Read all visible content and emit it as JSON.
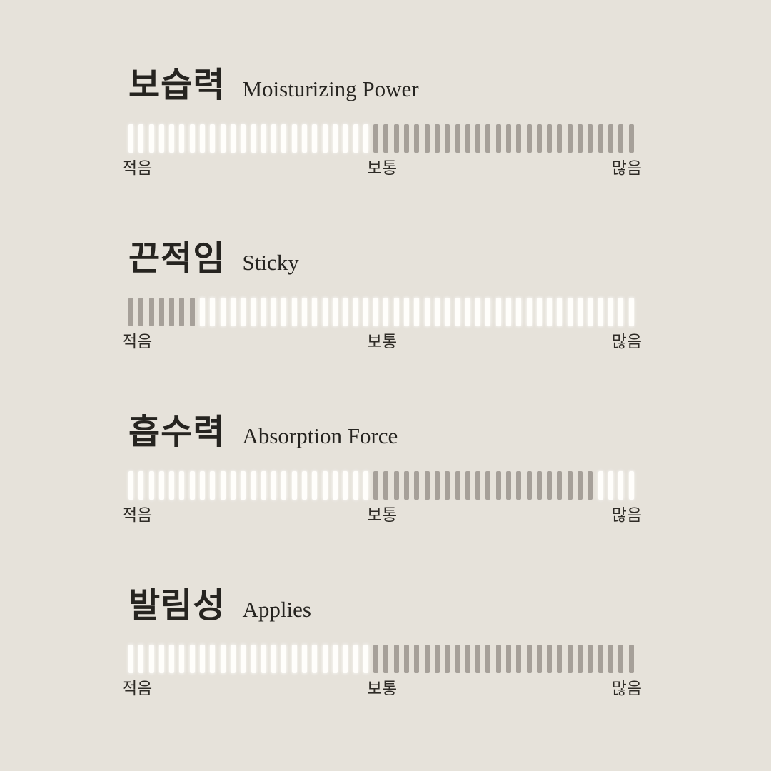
{
  "palette": {
    "background": "#e6e2da",
    "tick_white": "#fffefb",
    "tick_gray": "#a6a099",
    "text_dark": "#262420",
    "text_label": "#2e2b26"
  },
  "scale_labels": {
    "low": "적음",
    "mid": "보통",
    "high": "많음"
  },
  "sections": [
    {
      "title_kr": "보습력",
      "title_en": "Moisturizing Power",
      "segments": [
        {
          "color": "white",
          "count": 24
        },
        {
          "color": "gray",
          "count": 26
        }
      ]
    },
    {
      "title_kr": "끈적임",
      "title_en": "Sticky",
      "segments": [
        {
          "color": "gray",
          "count": 7
        },
        {
          "color": "white",
          "count": 43
        }
      ]
    },
    {
      "title_kr": "흡수력",
      "title_en": "Absorption Force",
      "segments": [
        {
          "color": "white",
          "count": 24
        },
        {
          "color": "gray",
          "count": 22
        },
        {
          "color": "white",
          "count": 4
        }
      ]
    },
    {
      "title_kr": "발림성",
      "title_en": "Applies",
      "segments": [
        {
          "color": "white",
          "count": 24
        },
        {
          "color": "gray",
          "count": 26
        }
      ]
    }
  ],
  "chart_data": {
    "type": "bar",
    "ticks_per_bar": 50,
    "axis_tick_labels": [
      "적음",
      "보통",
      "많음"
    ],
    "bars": [
      {
        "label_kr": "보습력",
        "label_en": "Moisturizing Power",
        "highlighted_tick_range": [
          25,
          50
        ],
        "highlighted_fraction": [
          0.48,
          1.0
        ],
        "reading": "mid-to-high"
      },
      {
        "label_kr": "끈적임",
        "label_en": "Sticky",
        "highlighted_tick_range": [
          1,
          7
        ],
        "highlighted_fraction": [
          0.0,
          0.14
        ],
        "reading": "low"
      },
      {
        "label_kr": "흡수력",
        "label_en": "Absorption Force",
        "highlighted_tick_range": [
          25,
          46
        ],
        "highlighted_fraction": [
          0.48,
          0.92
        ],
        "reading": "mid-to-high"
      },
      {
        "label_kr": "발림성",
        "label_en": "Applies",
        "highlighted_tick_range": [
          25,
          50
        ],
        "highlighted_fraction": [
          0.48,
          1.0
        ],
        "reading": "mid-to-high"
      }
    ]
  }
}
